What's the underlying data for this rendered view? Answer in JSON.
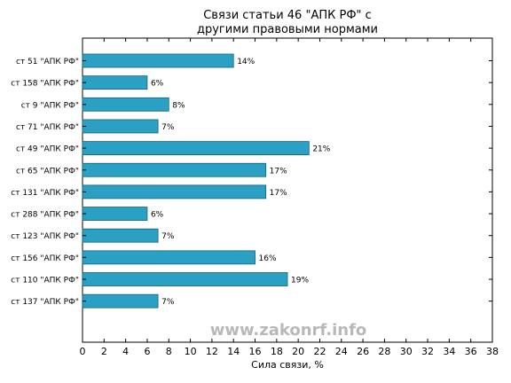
{
  "chart_data": {
    "type": "bar",
    "orientation": "horizontal",
    "title_lines": [
      "Связи статьи 46 \"АПК РФ\" с",
      "другими правовыми нормами"
    ],
    "xlabel": "Сила связи, %",
    "ylabel": "",
    "xlim": [
      0,
      38
    ],
    "xticks": [
      0,
      2,
      4,
      6,
      8,
      10,
      12,
      14,
      16,
      18,
      20,
      22,
      24,
      26,
      28,
      30,
      32,
      34,
      36,
      38
    ],
    "categories": [
      "ст 51 \"АПК РФ\"",
      "ст 158 \"АПК РФ\"",
      "ст 9 \"АПК РФ\"",
      "ст 71 \"АПК РФ\"",
      "ст 49 \"АПК РФ\"",
      "ст 65 \"АПК РФ\"",
      "ст 131 \"АПК РФ\"",
      "ст 288 \"АПК РФ\"",
      "ст 123 \"АПК РФ\"",
      "ст 156 \"АПК РФ\"",
      "ст 110 \"АПК РФ\"",
      "ст 137 \"АПК РФ\""
    ],
    "values": [
      14,
      6,
      8,
      7,
      21,
      17,
      17,
      6,
      7,
      16,
      19,
      7
    ],
    "value_labels": [
      "14%",
      "6%",
      "8%",
      "7%",
      "21%",
      "17%",
      "17%",
      "6%",
      "7%",
      "16%",
      "19%",
      "7%"
    ],
    "bar_color": "#2aa0c4",
    "bar_edge_color": "#1a5f75",
    "grid": false,
    "legend": "none"
  },
  "watermark": "www.zakonrf.info"
}
